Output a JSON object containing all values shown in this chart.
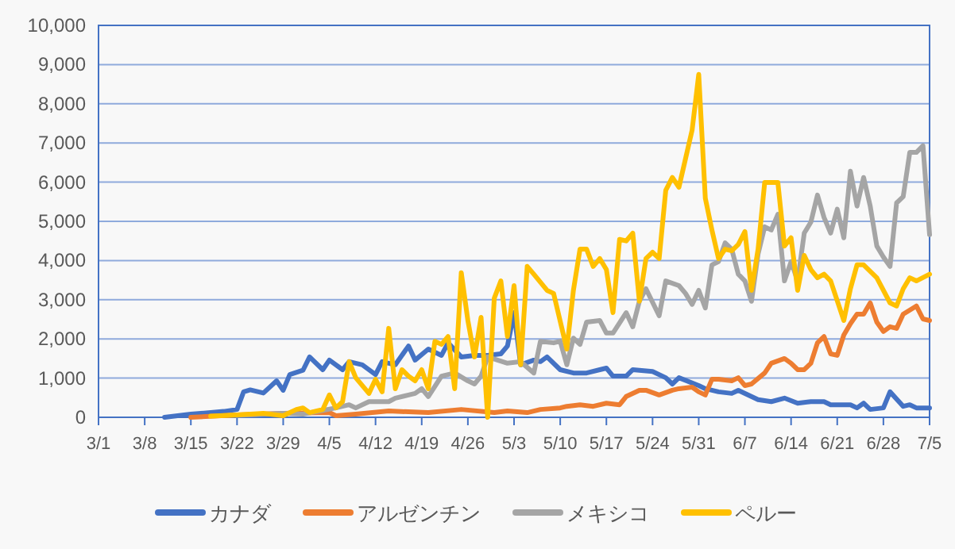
{
  "chart_data": {
    "type": "line",
    "xlim": [
      "--03-01",
      "--07-05"
    ],
    "xticks": [
      {
        "value": "--03-01",
        "label": "3/1"
      },
      {
        "value": "--03-08",
        "label": "3/8"
      },
      {
        "value": "--03-15",
        "label": "3/15"
      },
      {
        "value": "--03-22",
        "label": "3/22"
      },
      {
        "value": "--03-29",
        "label": "3/29"
      },
      {
        "value": "--04-05",
        "label": "4/5"
      },
      {
        "value": "--04-12",
        "label": "4/12"
      },
      {
        "value": "--04-19",
        "label": "4/19"
      },
      {
        "value": "--04-26",
        "label": "4/26"
      },
      {
        "value": "--05-03",
        "label": "5/3"
      },
      {
        "value": "--05-10",
        "label": "5/10"
      },
      {
        "value": "--05-17",
        "label": "5/17"
      },
      {
        "value": "--05-24",
        "label": "5/24"
      },
      {
        "value": "--05-31",
        "label": "5/31"
      },
      {
        "value": "--06-07",
        "label": "6/7"
      },
      {
        "value": "--06-14",
        "label": "6/14"
      },
      {
        "value": "--06-21",
        "label": "6/21"
      },
      {
        "value": "--06-28",
        "label": "6/28"
      },
      {
        "value": "--07-05",
        "label": "7/5"
      }
    ],
    "ylim": [
      0,
      10000
    ],
    "yticks": [
      0,
      {
        "value": 1000,
        "label": "1,000"
      },
      {
        "value": 2000,
        "label": "2,000"
      },
      {
        "value": 3000,
        "label": "3,000"
      },
      {
        "value": 4000,
        "label": "4,000"
      },
      {
        "value": 5000,
        "label": "5,000"
      },
      {
        "value": 6000,
        "label": "6,000"
      },
      {
        "value": 7000,
        "label": "7,000"
      },
      {
        "value": 8000,
        "label": "8,000"
      },
      {
        "value": 9000,
        "label": "9,000"
      },
      {
        "value": 10000,
        "label": "10,000"
      }
    ],
    "grid": "y",
    "legend": "bottom",
    "series": [
      {
        "name": "カナダ",
        "color": "#4472c4",
        "x": [
          "--03-11",
          "--03-15",
          "--03-20",
          "--03-22",
          "--03-23",
          "--03-24",
          "--03-26",
          "--03-28",
          "--03-29",
          "--03-30",
          "--04-01",
          "--04-02",
          "--04-04",
          "--04-05",
          "--04-07",
          "--04-08",
          "--04-10",
          "--04-12",
          "--04-13",
          "--04-15",
          "--04-17",
          "--04-18",
          "--04-20",
          "--04-22",
          "--04-23",
          "--04-25",
          "--04-27",
          "--04-29",
          "--05-01",
          "--05-02",
          "--05-03",
          "--05-04",
          "--05-06",
          "--05-07",
          "--05-08",
          "--05-10",
          "--05-12",
          "--05-14",
          "--05-16",
          "--05-17",
          "--05-18",
          "--05-20",
          "--05-21",
          "--05-24",
          "--05-26",
          "--05-27",
          "--05-28",
          "--05-31",
          "--06-01",
          "--06-03",
          "--06-05",
          "--06-06",
          "--06-09",
          "--06-11",
          "--06-13",
          "--06-15",
          "--06-17",
          "--06-19",
          "--06-20",
          "--06-23",
          "--06-24",
          "--06-25",
          "--06-26",
          "--06-28",
          "--06-29",
          "--07-01",
          "--07-02",
          "--07-03",
          "--07-05"
        ],
        "values": [
          0,
          80,
          150,
          200,
          650,
          700,
          620,
          930,
          690,
          1090,
          1200,
          1540,
          1215,
          1460,
          1215,
          1420,
          1340,
          1090,
          1420,
          1340,
          1820,
          1460,
          1740,
          1580,
          1900,
          1540,
          1580,
          1580,
          1620,
          1820,
          2670,
          1340,
          1460,
          1420,
          1540,
          1215,
          1130,
          1130,
          1215,
          1255,
          1050,
          1050,
          1215,
          1170,
          1010,
          850,
          1010,
          810,
          730,
          650,
          610,
          690,
          450,
          400,
          490,
          360,
          400,
          400,
          320,
          320,
          240,
          360,
          200,
          240,
          650,
          280,
          320,
          240,
          240
        ]
      },
      {
        "name": "アルゼンチン",
        "color": "#ed7d31",
        "x": [
          "--03-15",
          "--03-22",
          "--03-29",
          "--04-05",
          "--04-06",
          "--04-09",
          "--04-14",
          "--04-20",
          "--04-25",
          "--04-30",
          "--05-02",
          "--05-05",
          "--05-07",
          "--05-10",
          "--05-11",
          "--05-13",
          "--05-15",
          "--05-17",
          "--05-19",
          "--05-20",
          "--05-22",
          "--05-23",
          "--05-25",
          "--05-27",
          "--05-28",
          "--05-30",
          "--05-31",
          "--06-01",
          "--06-02",
          "--06-03",
          "--06-05",
          "--06-06",
          "--06-07",
          "--06-08",
          "--06-10",
          "--06-11",
          "--06-13",
          "--06-14",
          "--06-15",
          "--06-16",
          "--06-17",
          "--06-18",
          "--06-19",
          "--06-20",
          "--06-21",
          "--06-22",
          "--06-23",
          "--06-24",
          "--06-25",
          "--06-26",
          "--06-27",
          "--06-28",
          "--06-29",
          "--06-30",
          "--07-01",
          "--07-03",
          "--07-04",
          "--07-05"
        ],
        "values": [
          0,
          60,
          100,
          120,
          40,
          80,
          160,
          120,
          200,
          120,
          160,
          120,
          200,
          240,
          280,
          320,
          280,
          360,
          320,
          530,
          690,
          690,
          570,
          690,
          730,
          770,
          650,
          570,
          970,
          970,
          930,
          1010,
          810,
          850,
          1130,
          1380,
          1500,
          1380,
          1215,
          1215,
          1380,
          1900,
          2060,
          1620,
          1580,
          2100,
          2390,
          2630,
          2630,
          2920,
          2430,
          2190,
          2310,
          2270,
          2630,
          2840,
          2510,
          2470
        ]
      },
      {
        "name": "メキシコ",
        "color": "#a5a5a5",
        "x": [
          "--03-22",
          "--03-29",
          "--04-01",
          "--04-06",
          "--04-08",
          "--04-09",
          "--04-11",
          "--04-14",
          "--04-15",
          "--04-17",
          "--04-18",
          "--04-19",
          "--04-20",
          "--04-22",
          "--04-24",
          "--04-26",
          "--04-27",
          "--04-28",
          "--04-29",
          "--05-02",
          "--05-04",
          "--05-06",
          "--05-07",
          "--05-09",
          "--05-10",
          "--05-11",
          "--05-12",
          "--05-13",
          "--05-14",
          "--05-16",
          "--05-17",
          "--05-18",
          "--05-20",
          "--05-21",
          "--05-22",
          "--05-23",
          "--05-25",
          "--05-26",
          "--05-28",
          "--05-29",
          "--05-30",
          "--05-31",
          "--06-01",
          "--06-02",
          "--06-03",
          "--06-04",
          "--06-05",
          "--06-06",
          "--06-07",
          "--06-08",
          "--06-09",
          "--06-10",
          "--06-11",
          "--06-12",
          "--06-13",
          "--06-14",
          "--06-15",
          "--06-16",
          "--06-17",
          "--06-18",
          "--06-19",
          "--06-20",
          "--06-21",
          "--06-22",
          "--06-23",
          "--06-24",
          "--06-25",
          "--06-26",
          "--06-27",
          "--06-28",
          "--06-29",
          "--06-30",
          "--07-01",
          "--07-02",
          "--07-03",
          "--07-04",
          "--07-05"
        ],
        "values": [
          50,
          100,
          80,
          240,
          320,
          240,
          400,
          400,
          490,
          570,
          610,
          730,
          530,
          1050,
          1130,
          930,
          850,
          1050,
          1540,
          1380,
          1420,
          1130,
          1940,
          1900,
          1940,
          1340,
          2020,
          1860,
          2430,
          2470,
          2150,
          2150,
          2670,
          2310,
          2960,
          3280,
          2590,
          3480,
          3360,
          3160,
          2880,
          3240,
          2790,
          3890,
          3970,
          4450,
          4290,
          3650,
          3480,
          2960,
          4170,
          4860,
          4780,
          5180,
          3480,
          3970,
          3480,
          4700,
          4980,
          5670,
          5100,
          4700,
          5310,
          4580,
          6280,
          5390,
          6120,
          5390,
          4370,
          4090,
          3850,
          5470,
          5630,
          6760,
          6760,
          6930,
          4660
        ]
      },
      {
        "name": "ペルー",
        "color": "#ffc000",
        "x": [
          "--03-18",
          "--03-22",
          "--03-26",
          "--03-29",
          "--03-31",
          "--04-01",
          "--04-02",
          "--04-04",
          "--04-05",
          "--04-06",
          "--04-07",
          "--04-08",
          "--04-09",
          "--04-11",
          "--04-12",
          "--04-13",
          "--04-14",
          "--04-15",
          "--04-16",
          "--04-17",
          "--04-18",
          "--04-19",
          "--04-20",
          "--04-21",
          "--04-22",
          "--04-23",
          "--04-24",
          "--04-25",
          "--04-26",
          "--04-27",
          "--04-28",
          "--04-29",
          "--04-30",
          "--05-01",
          "--05-02",
          "--05-03",
          "--05-04",
          "--05-05",
          "--05-06",
          "--05-08",
          "--05-09",
          "--05-11",
          "--05-12",
          "--05-13",
          "--05-14",
          "--05-15",
          "--05-16",
          "--05-17",
          "--05-18",
          "--05-19",
          "--05-20",
          "--05-21",
          "--05-22",
          "--05-23",
          "--05-24",
          "--05-25",
          "--05-26",
          "--05-27",
          "--05-28",
          "--05-29",
          "--05-30",
          "--05-31",
          "--06-01",
          "--06-02",
          "--06-03",
          "--06-04",
          "--06-05",
          "--06-06",
          "--06-07",
          "--06-08",
          "--06-09",
          "--06-10",
          "--06-12",
          "--06-13",
          "--06-14",
          "--06-15",
          "--06-16",
          "--06-17",
          "--06-18",
          "--06-19",
          "--06-20",
          "--06-22",
          "--06-23",
          "--06-24",
          "--06-25",
          "--06-27",
          "--06-29",
          "--06-30",
          "--07-01",
          "--07-02",
          "--07-03",
          "--07-05"
        ],
        "values": [
          30,
          60,
          100,
          40,
          200,
          240,
          120,
          200,
          570,
          240,
          400,
          1420,
          1010,
          610,
          970,
          650,
          2270,
          730,
          1215,
          1050,
          930,
          1215,
          730,
          1940,
          1860,
          2060,
          730,
          3690,
          2470,
          1540,
          2550,
          0,
          3040,
          3480,
          2060,
          3360,
          1340,
          3850,
          3650,
          3240,
          3160,
          1740,
          3240,
          4290,
          4290,
          3850,
          4050,
          3770,
          2670,
          4540,
          4500,
          4700,
          2960,
          4050,
          4210,
          4050,
          5790,
          6120,
          5870,
          6600,
          7330,
          8750,
          5590,
          4780,
          4050,
          4290,
          4250,
          4410,
          4740,
          3240,
          4290,
          5990,
          5990,
          4370,
          4580,
          3240,
          4130,
          3770,
          3560,
          3650,
          3480,
          2470,
          3280,
          3890,
          3890,
          3560,
          2920,
          2840,
          3280,
          3560,
          3480,
          3650
        ]
      }
    ]
  }
}
